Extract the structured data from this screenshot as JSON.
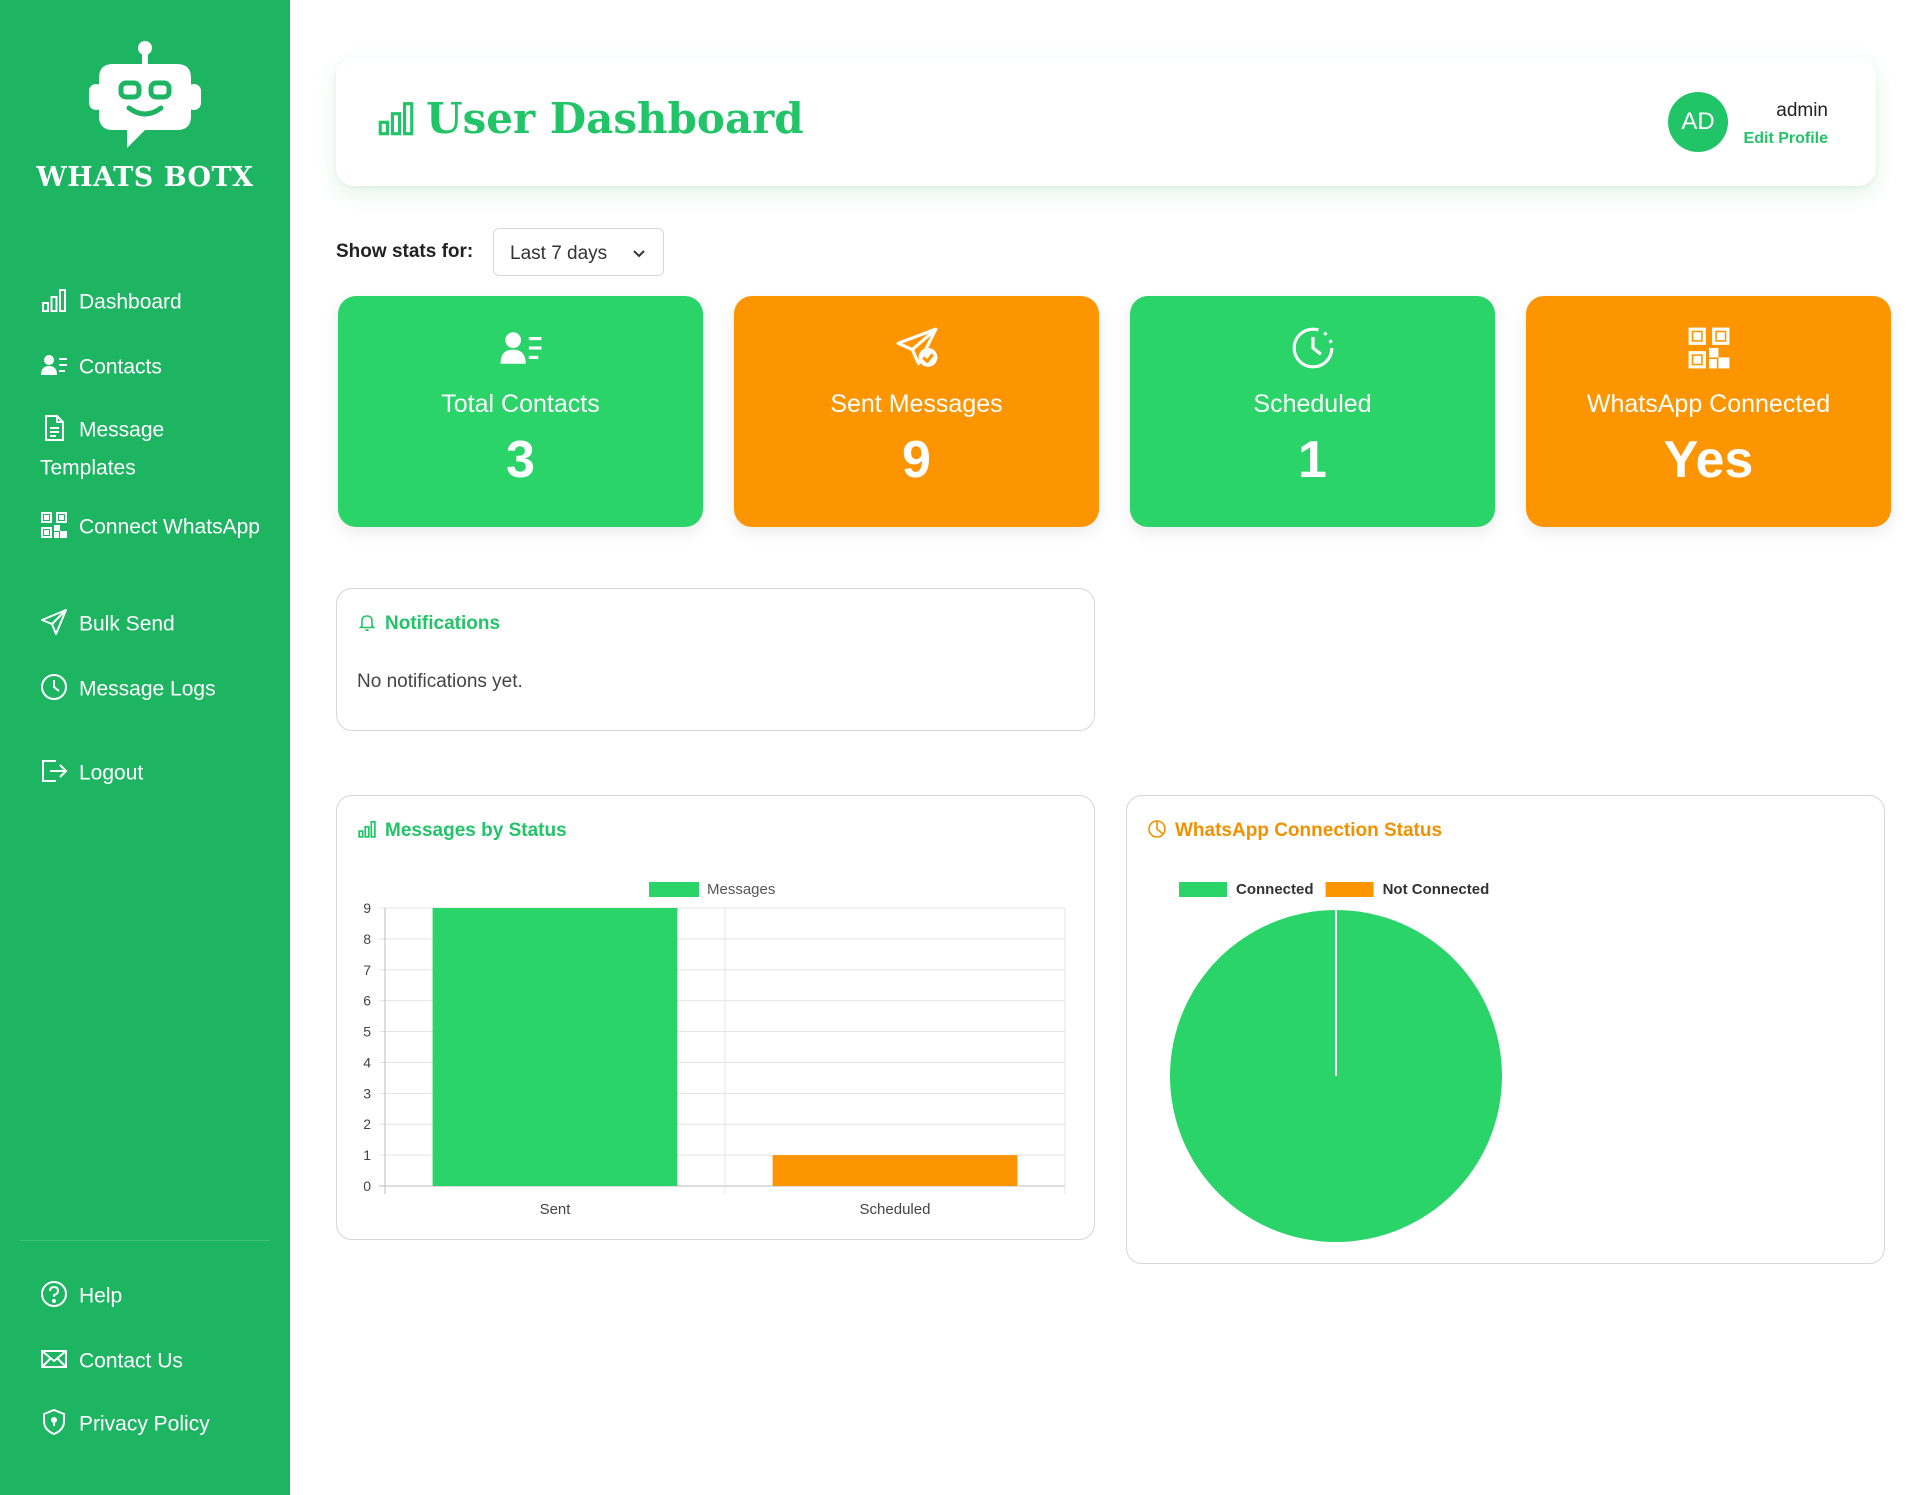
{
  "brand": {
    "name": "WHATS BOTX",
    "primary_color": "#1db462",
    "accent_green": "#2ad469",
    "accent_orange": "#fd9500"
  },
  "sidebar": {
    "items": [
      {
        "label": "Dashboard",
        "icon": "bar-chart-icon"
      },
      {
        "label": "Contacts",
        "icon": "contacts-icon"
      },
      {
        "label": "Message Templates",
        "icon": "document-icon"
      },
      {
        "label": "Connect WhatsApp",
        "icon": "qr-code-icon"
      },
      {
        "label": "Bulk Send",
        "icon": "send-icon"
      },
      {
        "label": "Message Logs",
        "icon": "clock-icon"
      },
      {
        "label": "Logout",
        "icon": "logout-icon"
      }
    ],
    "footer_items": [
      {
        "label": "Help",
        "icon": "help-icon"
      },
      {
        "label": "Contact Us",
        "icon": "mail-icon"
      },
      {
        "label": "Privacy Policy",
        "icon": "shield-icon"
      }
    ]
  },
  "header": {
    "title": "User Dashboard",
    "avatar_initials": "AD",
    "username": "admin",
    "edit_profile": "Edit Profile"
  },
  "stats_filter": {
    "label": "Show stats for:",
    "selected": "Last 7 days"
  },
  "stat_cards": [
    {
      "title": "Total Contacts",
      "value": "3",
      "color": "green",
      "icon": "contacts-icon"
    },
    {
      "title": "Sent Messages",
      "value": "9",
      "color": "orange",
      "icon": "send-check-icon"
    },
    {
      "title": "Scheduled",
      "value": "1",
      "color": "green",
      "icon": "clock-icon"
    },
    {
      "title": "WhatsApp Connected",
      "value": "Yes",
      "color": "orange",
      "icon": "qr-code-icon"
    }
  ],
  "notifications": {
    "title": "Notifications",
    "empty_text": "No notifications yet."
  },
  "messages_chart": {
    "title": "Messages by Status",
    "chart_data": {
      "type": "bar",
      "categories": [
        "Sent",
        "Scheduled"
      ],
      "series": [
        {
          "name": "Messages",
          "values": [
            9,
            1
          ]
        }
      ],
      "bar_colors": [
        "#2ad469",
        "#fd9500"
      ],
      "ylim": [
        0,
        9
      ],
      "yticks": [
        0,
        1,
        2,
        3,
        4,
        5,
        6,
        7,
        8,
        9
      ],
      "legend_position": "top",
      "grid": true
    }
  },
  "connection_chart": {
    "title": "WhatsApp Connection Status",
    "chart_data": {
      "type": "pie",
      "labels": [
        "Connected",
        "Not Connected"
      ],
      "values": [
        1,
        0
      ],
      "colors": [
        "#2ad469",
        "#fd9500"
      ],
      "legend_position": "top-left"
    }
  }
}
